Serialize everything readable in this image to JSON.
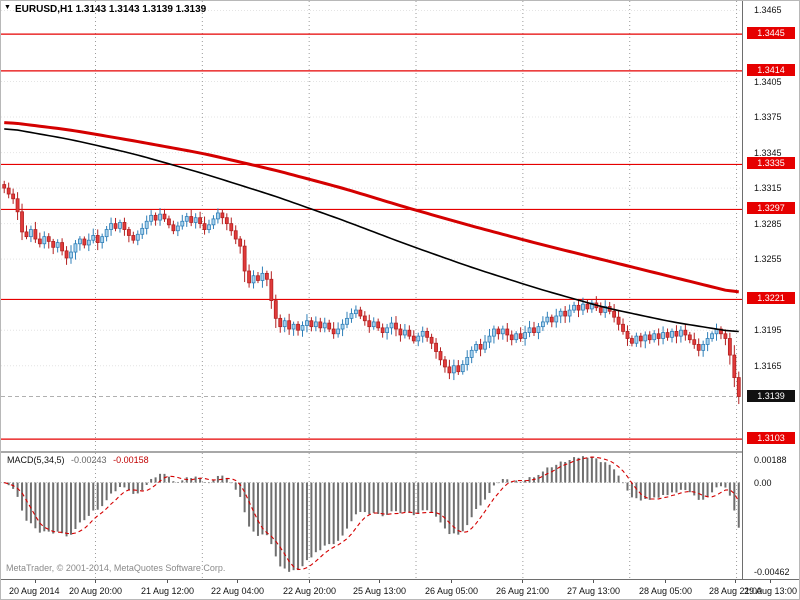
{
  "window": {
    "marker_icon": "▼",
    "title": "EURUSD,H1 1.3143 1.3143 1.3139 1.3139"
  },
  "chart_data": {
    "type": "candlestick",
    "symbol": "EURUSD",
    "timeframe": "H1",
    "ohlc": {
      "open": "1.3143",
      "high": "1.3143",
      "low": "1.3139",
      "close": "1.3139"
    },
    "price_axis": {
      "range": {
        "top": 1.3473,
        "bottom": 1.3093
      },
      "ticks": [
        1.3465,
        1.3405,
        1.3375,
        1.3345,
        1.3315,
        1.3285,
        1.3255,
        1.3195,
        1.3165
      ],
      "red_levels": [
        1.3445,
        1.3414,
        1.3335,
        1.3297,
        1.3221,
        1.3103
      ],
      "current_price": 1.3139
    },
    "time_axis": {
      "labels": [
        "20 Aug 2014",
        "20 Aug 20:00",
        "21 Aug 12:00",
        "22 Aug 04:00",
        "22 Aug 20:00",
        "25 Aug 13:00",
        "26 Aug 05:00",
        "26 Aug 21:00",
        "27 Aug 13:00",
        "28 Aug 05:00",
        "28 Aug 21:00",
        "29 Aug 13:00"
      ]
    },
    "day_separator_bars": [
      21,
      45,
      69,
      93,
      117,
      141,
      165
    ],
    "candles": {
      "first_open": 1.3318,
      "closes": [
        1.3315,
        1.331,
        1.3306,
        1.3295,
        1.3278,
        1.3274,
        1.328,
        1.3272,
        1.3268,
        1.3274,
        1.327,
        1.3265,
        1.3269,
        1.3262,
        1.3256,
        1.3261,
        1.3268,
        1.3272,
        1.3267,
        1.3271,
        1.3275,
        1.3269,
        1.3274,
        1.328,
        1.3285,
        1.3281,
        1.3286,
        1.328,
        1.3275,
        1.3271,
        1.3276,
        1.3281,
        1.3287,
        1.3292,
        1.3288,
        1.3293,
        1.3289,
        1.3284,
        1.3279,
        1.3283,
        1.3287,
        1.3291,
        1.3286,
        1.329,
        1.3285,
        1.328,
        1.3284,
        1.3289,
        1.3294,
        1.329,
        1.3285,
        1.3279,
        1.3272,
        1.3266,
        1.3245,
        1.3235,
        1.3241,
        1.3237,
        1.3243,
        1.3238,
        1.322,
        1.3205,
        1.3198,
        1.3203,
        1.3196,
        1.32,
        1.3195,
        1.3199,
        1.3203,
        1.3198,
        1.3202,
        1.3197,
        1.3201,
        1.3196,
        1.3192,
        1.3196,
        1.32,
        1.3205,
        1.3209,
        1.3212,
        1.3207,
        1.3203,
        1.3198,
        1.3202,
        1.3197,
        1.3193,
        1.3197,
        1.3201,
        1.3196,
        1.3191,
        1.3195,
        1.319,
        1.3186,
        1.319,
        1.3194,
        1.3189,
        1.3184,
        1.3177,
        1.317,
        1.3164,
        1.3159,
        1.3165,
        1.316,
        1.3166,
        1.3172,
        1.3178,
        1.3183,
        1.3179,
        1.3185,
        1.319,
        1.3196,
        1.3192,
        1.3196,
        1.3191,
        1.3187,
        1.3192,
        1.3188,
        1.3193,
        1.3197,
        1.3193,
        1.3198,
        1.3202,
        1.3206,
        1.3202,
        1.3207,
        1.3211,
        1.3207,
        1.3212,
        1.3216,
        1.3212,
        1.3217,
        1.3213,
        1.3218,
        1.3214,
        1.321,
        1.3215,
        1.3211,
        1.3206,
        1.32,
        1.3194,
        1.3188,
        1.3184,
        1.319,
        1.3186,
        1.3191,
        1.3187,
        1.3192,
        1.3188,
        1.3193,
        1.3189,
        1.3194,
        1.319,
        1.3195,
        1.3191,
        1.3187,
        1.3183,
        1.3178,
        1.3183,
        1.3188,
        1.3192,
        1.3196,
        1.3192,
        1.3188,
        1.3174,
        1.3155,
        1.3139
      ]
    },
    "moving_averages": [
      {
        "name": "slow-ma-line",
        "color": "#d40000",
        "width": 3,
        "anchors": [
          [
            0,
            1.3371
          ],
          [
            15,
            1.3364
          ],
          [
            29,
            1.3355
          ],
          [
            45,
            1.3344
          ],
          [
            61,
            1.333
          ],
          [
            76,
            1.3315
          ],
          [
            90,
            1.3299
          ],
          [
            105,
            1.3283
          ],
          [
            120,
            1.3268
          ],
          [
            135,
            1.3254
          ],
          [
            150,
            1.324
          ],
          [
            165,
            1.3226
          ]
        ]
      },
      {
        "name": "fast-ma-line",
        "color": "#000000",
        "width": 1.6,
        "anchors": [
          [
            0,
            1.3366
          ],
          [
            15,
            1.3356
          ],
          [
            29,
            1.3344
          ],
          [
            45,
            1.3327
          ],
          [
            61,
            1.3308
          ],
          [
            76,
            1.3288
          ],
          [
            90,
            1.3268
          ],
          [
            105,
            1.3248
          ],
          [
            120,
            1.323
          ],
          [
            135,
            1.3214
          ],
          [
            150,
            1.3202
          ],
          [
            160,
            1.3196
          ],
          [
            165,
            1.3193
          ]
        ]
      }
    ],
    "macd": {
      "label": "MACD(5,34,5)",
      "main_value": "-0.00243",
      "signal_value": "-0.00158",
      "fast": 5,
      "slow": 34,
      "signal_period": 5,
      "axis": {
        "top_label": "0.00188",
        "zero_label": "0.00",
        "bottom_label": "-0.00462"
      }
    },
    "copyright": "MetaTrader, © 2001-2014, MetaQuotes Software Corp.",
    "colors": {
      "level": "#e60000",
      "bull_fill": "#a9d3ee",
      "bull_stroke": "#2f7fb8",
      "bear_fill": "#e03b3b",
      "bear_stroke": "#b32020",
      "macd_hist": "#6f6f6f",
      "macd_signal": "#d40000"
    }
  }
}
